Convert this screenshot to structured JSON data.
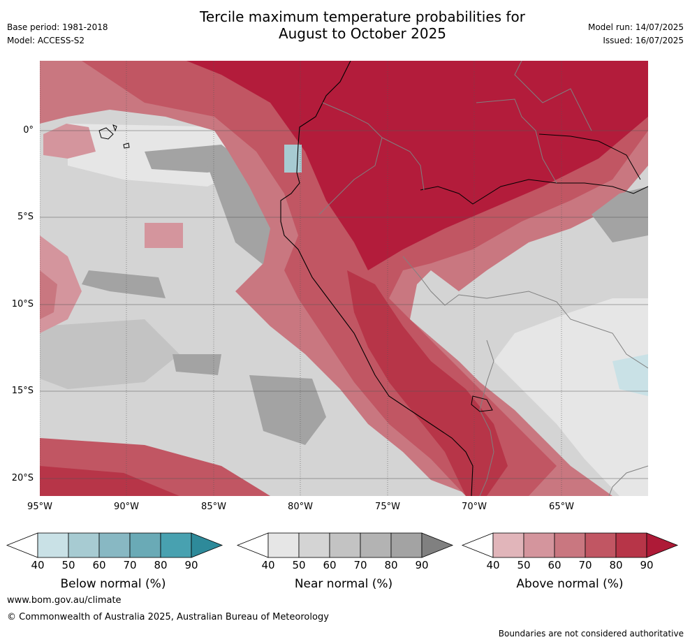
{
  "title_line1": "Tercile maximum temperature probabilities for",
  "title_line2": "August to October 2025",
  "base_period": "Base period: 1981-2018",
  "model": "Model: ACCESS-S2",
  "model_run": "Model run: 14/07/2025",
  "issued": "Issued: 16/07/2025",
  "lat_labels": [
    "0°",
    "5°S",
    "10°S",
    "15°S",
    "20°S"
  ],
  "lon_labels": [
    "95°W",
    "90°W",
    "85°W",
    "80°W",
    "75°W",
    "70°W",
    "65°W"
  ],
  "colorbars": [
    {
      "label": "Below normal (%)",
      "ticks": [
        "40",
        "50",
        "60",
        "70",
        "80",
        "90"
      ],
      "colors": [
        "#ffffff",
        "#c9e1e6",
        "#a7cbd2",
        "#88b8c3",
        "#6aaab6",
        "#48a1b0",
        "#2e8a9a"
      ]
    },
    {
      "label": "Near normal (%)",
      "ticks": [
        "40",
        "50",
        "60",
        "70",
        "80",
        "90"
      ],
      "colors": [
        "#ffffff",
        "#e6e6e6",
        "#d4d4d4",
        "#c3c3c3",
        "#b3b3b3",
        "#a3a3a3",
        "#808080"
      ]
    },
    {
      "label": "Above normal (%)",
      "ticks": [
        "40",
        "50",
        "60",
        "70",
        "80",
        "90"
      ],
      "colors": [
        "#ffffff",
        "#e1b5ba",
        "#d4959d",
        "#c97780",
        "#c15663",
        "#b73548",
        "#ae1a37"
      ]
    }
  ],
  "website": "www.bom.gov.au/climate",
  "copyright": "© Commonwealth of Australia 2025, Australian Bureau of Meteorology",
  "disclaimer": "Boundaries are not considered authoritative"
}
